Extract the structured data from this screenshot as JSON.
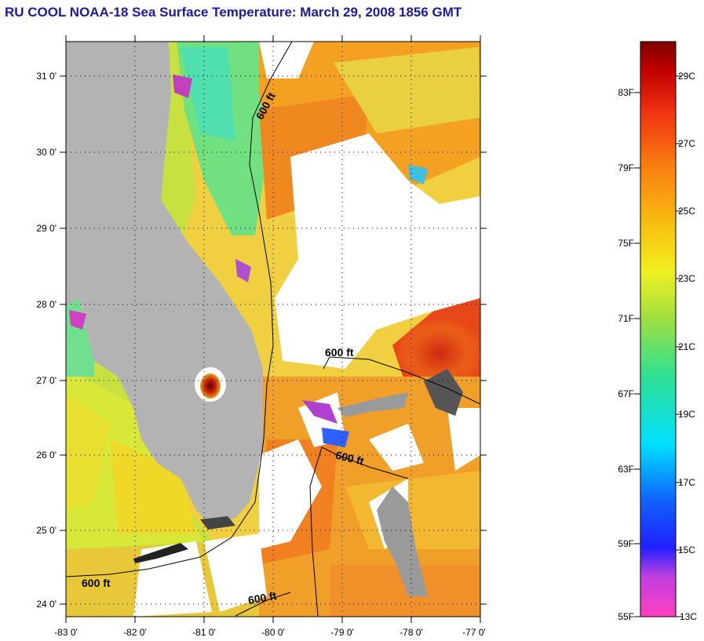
{
  "title": "RU COOL  NOAA-18  Sea Surface Temperature:  March 29, 2008 1856 GMT",
  "latitude_labels": [
    "31 0'",
    "30 0'",
    "29 0'",
    "28 0'",
    "27 0'",
    "26 0'",
    "25 0'",
    "24 0'"
  ],
  "longitude_labels": [
    "-83 0'",
    "-82 0'",
    "-81 0'",
    "-80 0'",
    "-79 0'",
    "-78 0'",
    "-77 0'"
  ],
  "isobath_labels": [
    "600 ft",
    "600 ft",
    "600 ft",
    "600 ft",
    "600 ft"
  ],
  "colorbar": {
    "fahrenheit": [
      "83F",
      "79F",
      "75F",
      "71F",
      "67F",
      "63F",
      "59F",
      "55F"
    ],
    "celsius": [
      "29C",
      "27C",
      "25C",
      "23C",
      "21C",
      "19C",
      "17C",
      "15C",
      "13C"
    ]
  },
  "colors": {
    "title": "#1a1aa8",
    "land": "#b3b3b3",
    "cloud": "#ffffff",
    "warm": "#f07818",
    "hot": "#e03a10",
    "mild": "#f5c020",
    "cool": "#90e040",
    "cold": "#30e0c0"
  }
}
